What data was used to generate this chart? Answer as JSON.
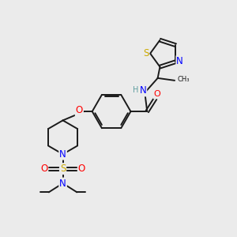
{
  "bg_color": "#ebebeb",
  "bond_color": "#1a1a1a",
  "atom_colors": {
    "N": "#0000ff",
    "O": "#ff0000",
    "S": "#ccaa00",
    "H": "#5f9ea0",
    "C": "#1a1a1a"
  },
  "figsize": [
    3.0,
    3.0
  ],
  "dpi": 100,
  "lw": 1.4,
  "fs": 7.0
}
